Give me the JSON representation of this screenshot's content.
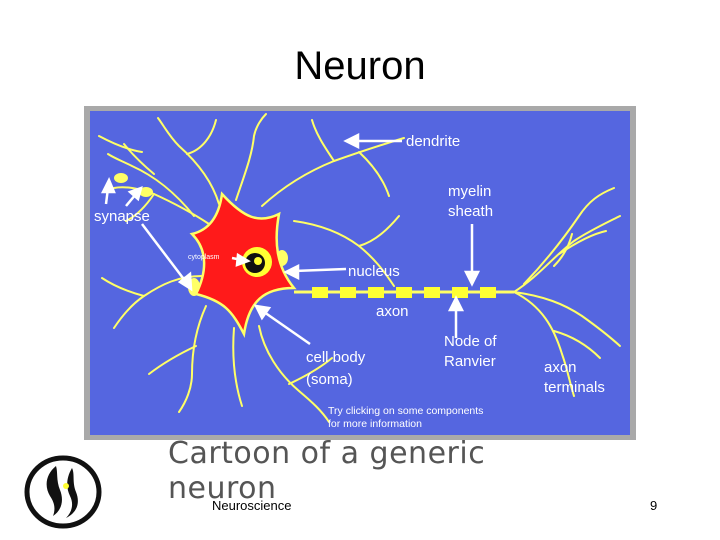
{
  "slide": {
    "title": "Neuron",
    "caption": "Cartoon of a generic neuron",
    "footer": "Neuroscience",
    "page_number": "9"
  },
  "diagram": {
    "background_color": "#5566e0",
    "soma_color": "#ff1a1a",
    "process_color": "#ffff66",
    "labels": {
      "dendrite": "dendrite",
      "myelin_line1": "myelin",
      "myelin_line2": "sheath",
      "synapse": "synapse",
      "cytoplasm": "cytoplasm",
      "nucleus": "nucleus",
      "axon": "axon",
      "node_line1": "Node of",
      "node_line2": "Ranvier",
      "cellbody_line1": "cell body",
      "cellbody_line2": "(soma)",
      "terminals_line1": "axon",
      "terminals_line2": "terminals",
      "hint_line1": "Try clicking on some components",
      "hint_line2": "for more information"
    }
  }
}
